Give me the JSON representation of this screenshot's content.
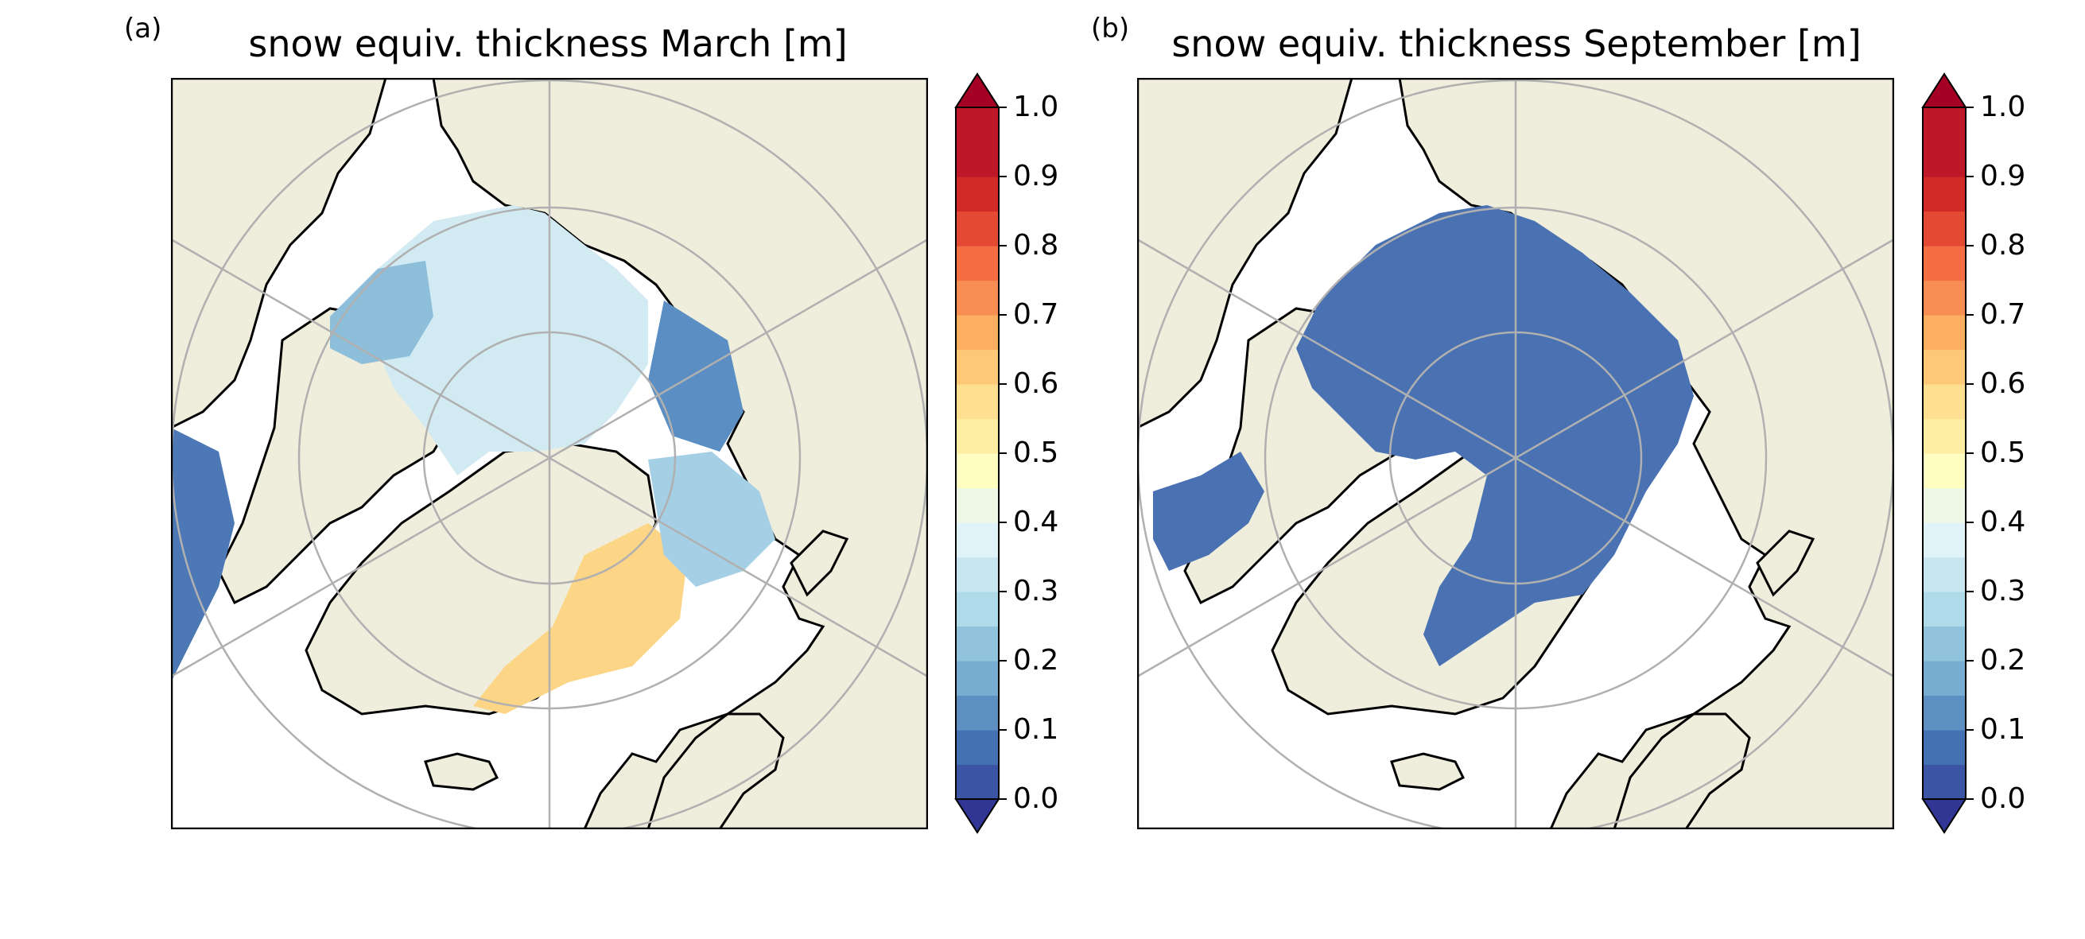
{
  "panels": [
    {
      "letter": "(a)",
      "title": "snow equiv. thickness March [m]",
      "colorbar": {
        "min": 0.0,
        "max": 1.0,
        "step": 0.05,
        "extend": "both",
        "tick_labels": [
          "0.0",
          "0.1",
          "0.2",
          "0.3",
          "0.4",
          "0.5",
          "0.6",
          "0.7",
          "0.8",
          "0.9",
          "1.0"
        ]
      }
    },
    {
      "letter": "(b)",
      "title": "snow equiv. thickness September [m]",
      "colorbar": {
        "min": 0.0,
        "max": 1.0,
        "step": 0.05,
        "extend": "both",
        "tick_labels": [
          "0.0",
          "0.1",
          "0.2",
          "0.3",
          "0.4",
          "0.5",
          "0.6",
          "0.7",
          "0.8",
          "0.9",
          "1.0"
        ]
      }
    }
  ],
  "colors": {
    "land": "#efeddc",
    "ocean": "#ffffff",
    "coastline": "#000000",
    "graticule": "#b0b0b0",
    "colormap": [
      "#313695",
      "#3b54a4",
      "#4471b2",
      "#5d8fc2",
      "#76add1",
      "#92c3dc",
      "#afdaea",
      "#c7e6f0",
      "#e0f3f8",
      "#eef8e6",
      "#fffdc0",
      "#feeea3",
      "#fee090",
      "#fdc877",
      "#fdae61",
      "#f88e53",
      "#f46d43",
      "#e34933",
      "#d22b27",
      "#be1727",
      "#a50026"
    ]
  }
}
